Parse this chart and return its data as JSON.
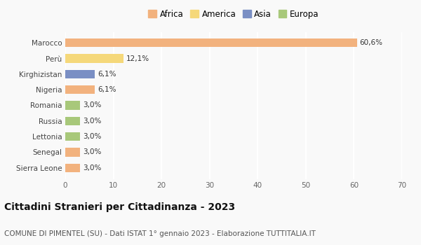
{
  "categories": [
    "Sierra Leone",
    "Senegal",
    "Lettonia",
    "Russia",
    "Romania",
    "Nigeria",
    "Kirghizistan",
    "Perù",
    "Marocco"
  ],
  "values": [
    3.0,
    3.0,
    3.0,
    3.0,
    3.0,
    6.1,
    6.1,
    12.1,
    60.6
  ],
  "labels": [
    "3,0%",
    "3,0%",
    "3,0%",
    "3,0%",
    "3,0%",
    "6,1%",
    "6,1%",
    "12,1%",
    "60,6%"
  ],
  "continents": [
    "Africa",
    "Africa",
    "Europa",
    "Europa",
    "Europa",
    "Africa",
    "Asia",
    "America",
    "Africa"
  ],
  "colors": {
    "Africa": "#F2B27E",
    "America": "#F5D87A",
    "Asia": "#7A8FC4",
    "Europa": "#A8C87A"
  },
  "legend_order": [
    "Africa",
    "America",
    "Asia",
    "Europa"
  ],
  "xlim": [
    0,
    70
  ],
  "xticks": [
    0,
    10,
    20,
    30,
    40,
    50,
    60,
    70
  ],
  "title": "Cittadini Stranieri per Cittadinanza - 2023",
  "subtitle": "COMUNE DI PIMENTEL (SU) - Dati ISTAT 1° gennaio 2023 - Elaborazione TUTTITALIA.IT",
  "background_color": "#f9f9f9",
  "grid_color": "#ffffff",
  "bar_height": 0.55,
  "label_fontsize": 7.5,
  "ytick_fontsize": 7.5,
  "xtick_fontsize": 7.5,
  "title_fontsize": 10,
  "subtitle_fontsize": 7.5,
  "legend_fontsize": 8.5
}
